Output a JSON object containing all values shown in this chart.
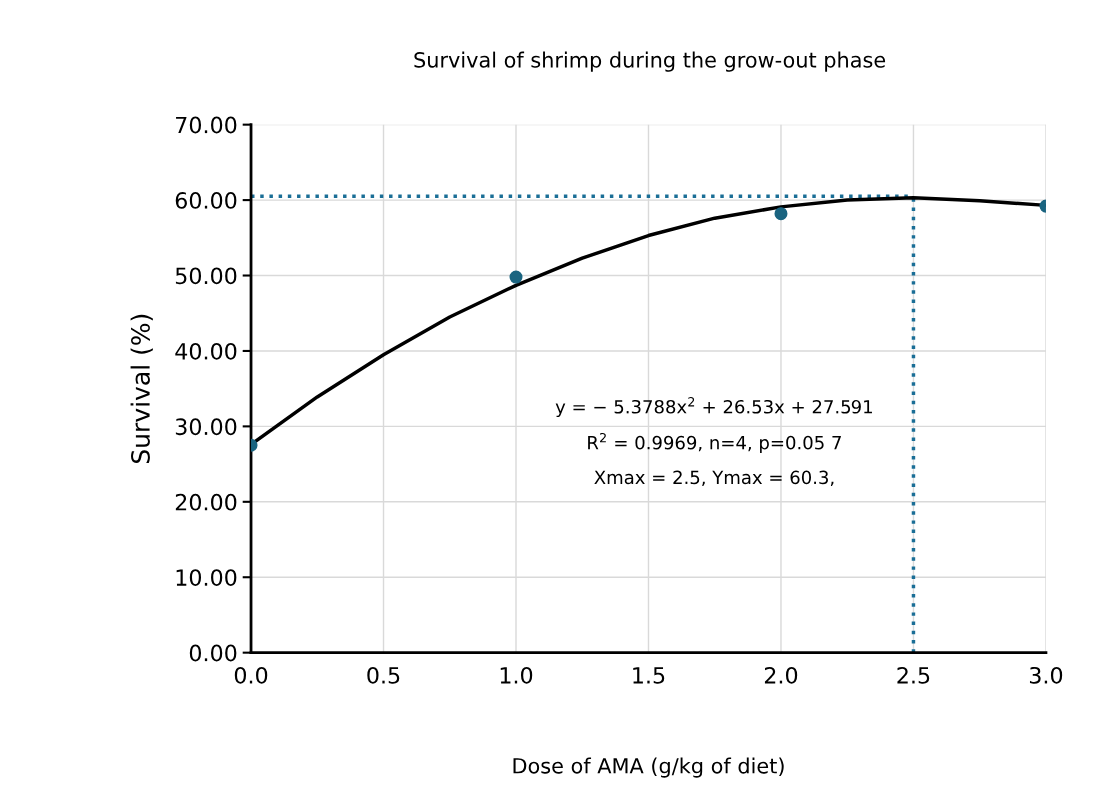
{
  "chart_data": {
    "type": "scatter",
    "title": "Survival of shrimp during the grow-out phase",
    "xlabel": "Dose of AMA (g/kg of diet)",
    "ylabel": "Survival (%)",
    "x": [
      0,
      1,
      2,
      3
    ],
    "series": [
      {
        "color": "#1a6480",
        "marker": "circle",
        "values": [
          27.5,
          49.8,
          58.2,
          59.2
        ]
      },
      {
        "type": "line",
        "color": "#000000",
        "x": [
          0,
          0.25,
          0.5,
          0.75,
          1,
          1.25,
          1.5,
          1.75,
          2,
          2.25,
          2.5,
          2.75,
          3
        ],
        "values": [
          27.6,
          33.9,
          39.5,
          44.5,
          48.7,
          52.3,
          55.3,
          57.6,
          59.1,
          60.0,
          60.3,
          59.9,
          59.3
        ]
      }
    ],
    "annotations": [
      "y = − 5.3788x$^{2}$ + 26.53x + 27.591",
      "R$^{2}$ = 0.9969, n=4, p=0.05 7",
      "Xmax = 2.5, Ymax = 60.3,"
    ],
    "ref_lines": [
      {
        "axis": "y",
        "value": 60.5,
        "color": "#1a6e96",
        "line_style": "dotted"
      },
      {
        "axis": "x",
        "value": 2.5,
        "color": "#1a6e96",
        "line_style": "dotted"
      }
    ],
    "xlim": [
      0,
      3
    ],
    "ylim": [
      0,
      70
    ],
    "xticks": [
      {
        "value": 0,
        "label": "0.0"
      },
      {
        "value": 0.5,
        "label": "0.5"
      },
      {
        "value": 1,
        "label": "1.0"
      },
      {
        "value": 1.5,
        "label": "1.5"
      },
      {
        "value": 2,
        "label": "2.0"
      },
      {
        "value": 2.5,
        "label": "2.5"
      },
      {
        "value": 3,
        "label": "3.0"
      }
    ],
    "yticks": [
      {
        "value": 0,
        "label": "0.00"
      },
      {
        "value": 10,
        "label": "10.00"
      },
      {
        "value": 20,
        "label": "20.00"
      },
      {
        "value": 30,
        "label": "30.00"
      },
      {
        "value": 40,
        "label": "40.00"
      },
      {
        "value": 50,
        "label": "50.00"
      },
      {
        "value": 60,
        "label": "60.00"
      },
      {
        "value": 70,
        "label": "70.00"
      }
    ],
    "grid": true
  }
}
